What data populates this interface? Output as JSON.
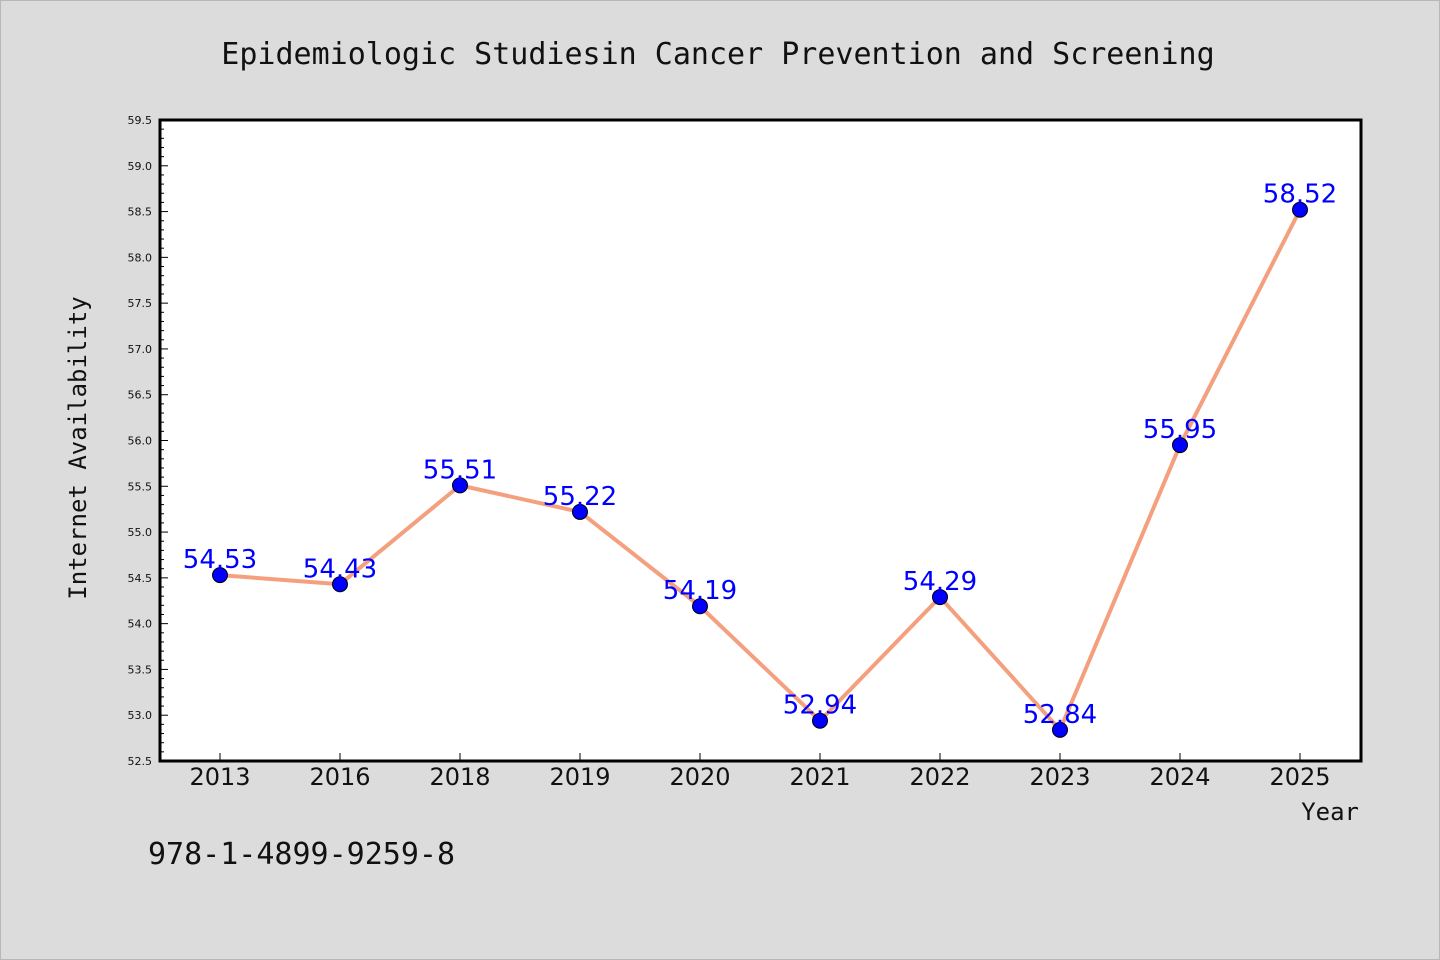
{
  "chart_data": {
    "type": "line",
    "title": "Epidemiologic Studiesin Cancer Prevention and Screening",
    "xlabel": "Year",
    "ylabel": "Internet Availability",
    "categories": [
      "2013",
      "2016",
      "2018",
      "2019",
      "2020",
      "2021",
      "2022",
      "2023",
      "2024",
      "2025"
    ],
    "series": [
      {
        "values": [
          54.53,
          54.43,
          55.51,
          55.22,
          54.19,
          52.94,
          54.29,
          52.84,
          55.95,
          58.52
        ],
        "data_labels": [
          "54.53",
          "54.43",
          "55.51",
          "55.22",
          "54.19",
          "52.94",
          "54.29",
          "52.84",
          "55.95",
          "58.52"
        ]
      }
    ],
    "ylim": [
      52.5,
      59.5
    ],
    "yticks": [
      "52.5",
      "53.0",
      "53.5",
      "54.0",
      "54.5",
      "55.0",
      "55.5",
      "56.0",
      "56.5",
      "57.0",
      "57.5",
      "58.0",
      "58.5",
      "59.0",
      "59.5"
    ],
    "grid": false,
    "legend": "none",
    "line_color": "#f4a07e",
    "marker_color": "#0000ff",
    "label_color": "#0000ff",
    "background_color": "#dcdcdc"
  },
  "footnote": "978-1-4899-9259-8"
}
